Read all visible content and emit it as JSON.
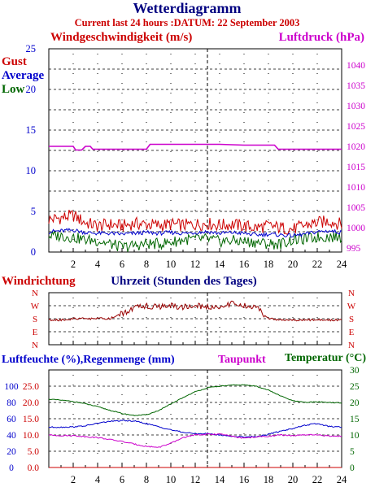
{
  "colors": {
    "red": "#cc0000",
    "blue": "#0000cc",
    "green": "#006600",
    "magenta": "#cc00cc",
    "navy": "#000080",
    "dark_red": "#990000"
  },
  "header": {
    "title": "Wetterdiagramm",
    "subtitle": "Current last 24 hours :DATUM: 22 September 2003"
  },
  "chart_data": [
    {
      "type": "line",
      "title": "Windgeschwindigkeit (m/s)",
      "secondary_title": "Luftdruck (hPa)",
      "xlim": [
        0,
        24
      ],
      "x_ticks": [
        2,
        4,
        6,
        8,
        10,
        12,
        14,
        16,
        18,
        20,
        22,
        24
      ],
      "ylim": [
        0,
        25
      ],
      "y_ticks": [
        0,
        5,
        10,
        15,
        20,
        25
      ],
      "y2lim": [
        994,
        1044
      ],
      "y2_ticks": [
        995,
        1000,
        1005,
        1010,
        1015,
        1020,
        1025,
        1030,
        1035,
        1040
      ],
      "legend": [
        "Gust",
        "Average",
        "Low"
      ],
      "grid": true,
      "series": [
        {
          "name": "Gust",
          "axis": "left",
          "x": [
            0,
            1,
            2,
            3,
            4,
            5,
            6,
            7,
            8,
            9,
            10,
            11,
            12,
            13,
            14,
            15,
            16,
            17,
            18,
            19,
            20,
            21,
            22,
            23,
            24
          ],
          "values": [
            4,
            4.2,
            4.5,
            3.6,
            3.2,
            3.4,
            3.2,
            3.5,
            3.4,
            3.3,
            3.4,
            3.3,
            3.4,
            3.5,
            3.3,
            3.4,
            3.2,
            3.0,
            3.2,
            3.0,
            2.8,
            3.3,
            3.6,
            3.8,
            3.4
          ]
        },
        {
          "name": "Average",
          "axis": "left",
          "x": [
            0,
            1,
            2,
            3,
            4,
            5,
            6,
            7,
            8,
            9,
            10,
            11,
            12,
            13,
            14,
            15,
            16,
            17,
            18,
            19,
            20,
            21,
            22,
            23,
            24
          ],
          "values": [
            2.5,
            2.6,
            2.7,
            2.4,
            2.3,
            2.3,
            2.2,
            2.3,
            2.4,
            2.3,
            2.4,
            2.3,
            2.4,
            2.5,
            2.3,
            2.4,
            2.3,
            2.1,
            2.2,
            2.1,
            2.0,
            2.2,
            2.5,
            2.6,
            2.4
          ]
        },
        {
          "name": "Low",
          "axis": "left",
          "x": [
            0,
            1,
            2,
            3,
            4,
            5,
            6,
            7,
            8,
            9,
            10,
            11,
            12,
            13,
            14,
            15,
            16,
            17,
            18,
            19,
            20,
            21,
            22,
            23,
            24
          ],
          "values": [
            2,
            2,
            1.8,
            1.5,
            1.4,
            1.0,
            0.6,
            0.8,
            1.0,
            1.0,
            1.2,
            1.5,
            1.6,
            1.6,
            1.3,
            1.4,
            1.3,
            1.2,
            1.0,
            1.0,
            1.5,
            1.6,
            1.8,
            1.9,
            1.8
          ]
        },
        {
          "name": "Luftdruck",
          "axis": "right",
          "x": [
            0,
            2.0,
            2.2,
            2.7,
            3.0,
            3.4,
            3.6,
            4.0,
            8.0,
            8.3,
            12.0,
            14.0,
            16.0,
            18.5,
            18.8,
            20.0,
            24.0
          ],
          "values": [
            1020.0,
            1020.0,
            1019.1,
            1019.1,
            1020.0,
            1020.0,
            1019.3,
            1019.3,
            1019.3,
            1020.5,
            1020.5,
            1020.5,
            1020.3,
            1020.3,
            1019.3,
            1019.3,
            1019.3
          ]
        }
      ]
    },
    {
      "type": "line",
      "title": "Windrichtung",
      "xlabel": "Uhrzeit (Stunden des Tages)",
      "xlim": [
        0,
        24
      ],
      "y_ticks": [
        "N",
        "W",
        "S",
        "E",
        "N"
      ],
      "grid": true,
      "series": [
        {
          "name": "Windrichtung",
          "x": [
            0,
            1,
            2,
            3,
            4,
            5,
            6,
            7,
            8,
            9,
            10,
            11,
            12,
            13,
            14,
            15,
            16,
            17,
            18,
            19,
            20,
            21,
            22,
            23,
            24
          ],
          "values": [
            1.9,
            1.9,
            2.0,
            2.0,
            2.0,
            2.0,
            2.4,
            2.8,
            3.0,
            2.9,
            3.0,
            2.9,
            3.0,
            2.9,
            2.9,
            3.2,
            3.0,
            2.9,
            2.0,
            1.9,
            1.9,
            1.9,
            1.9,
            1.9,
            1.9
          ]
        }
      ]
    },
    {
      "type": "line",
      "title": "Luftfeuchte (%),Regenmenge (mm)",
      "secondary_title": "Temperatur (°C)",
      "series_label": "Taupunkt",
      "xlim": [
        0,
        24
      ],
      "x_ticks": [
        2,
        4,
        6,
        8,
        10,
        12,
        14,
        16,
        18,
        20,
        22,
        24
      ],
      "y_ticks_humidity": [
        0,
        20,
        40,
        60,
        80,
        100
      ],
      "y_ticks_rain": [
        "0.0",
        "5.0",
        "10.0",
        "15.0",
        "20.0",
        "25.0"
      ],
      "ylim": [
        0,
        30
      ],
      "y2_ticks": [
        0,
        5,
        10,
        15,
        20,
        25,
        30
      ],
      "grid": true,
      "series": [
        {
          "name": "Temperatur",
          "x": [
            0,
            1,
            2,
            3,
            4,
            5,
            6,
            7,
            8,
            9,
            10,
            11,
            12,
            13,
            14,
            15,
            16,
            17,
            18,
            19,
            20,
            21,
            22,
            23,
            24
          ],
          "values": [
            21,
            20.7,
            20.3,
            19.6,
            18.7,
            17.6,
            16.6,
            16.0,
            16.2,
            17.5,
            19.5,
            21.5,
            23.3,
            24.5,
            25.0,
            25.3,
            25.4,
            25.0,
            23.8,
            22.0,
            20.5,
            20.0,
            20.2,
            20.0,
            19.8
          ]
        },
        {
          "name": "Luftfeuchte",
          "x": [
            0,
            1,
            2,
            3,
            4,
            5,
            6,
            7,
            8,
            9,
            10,
            11,
            12,
            13,
            14,
            15,
            16,
            17,
            18,
            19,
            20,
            21,
            22,
            23,
            24
          ],
          "values": [
            12.4,
            12.4,
            12.5,
            12.8,
            13.6,
            14.2,
            14.4,
            14.3,
            13.5,
            12.5,
            11.6,
            10.8,
            10.4,
            10.4,
            10.0,
            9.6,
            9.4,
            9.5,
            10.2,
            11.2,
            12.0,
            13.0,
            13.5,
            12.6,
            12.4
          ]
        },
        {
          "name": "Taupunkt",
          "x": [
            0,
            1,
            2,
            3,
            4,
            5,
            6,
            7,
            8,
            9,
            10,
            11,
            12,
            13,
            14,
            15,
            16,
            17,
            18,
            19,
            20,
            21,
            22,
            23,
            24
          ],
          "values": [
            10.0,
            9.8,
            9.8,
            9.5,
            9.2,
            8.6,
            8.0,
            7.2,
            6.5,
            6.2,
            7.4,
            9.2,
            10.0,
            10.2,
            10.3,
            9.6,
            9.0,
            9.4,
            9.6,
            10.0,
            9.8,
            10.0,
            10.0,
            9.7,
            9.6
          ]
        },
        {
          "name": "Regenmenge",
          "x": [
            0,
            24
          ],
          "values": [
            0,
            0
          ]
        }
      ]
    }
  ]
}
